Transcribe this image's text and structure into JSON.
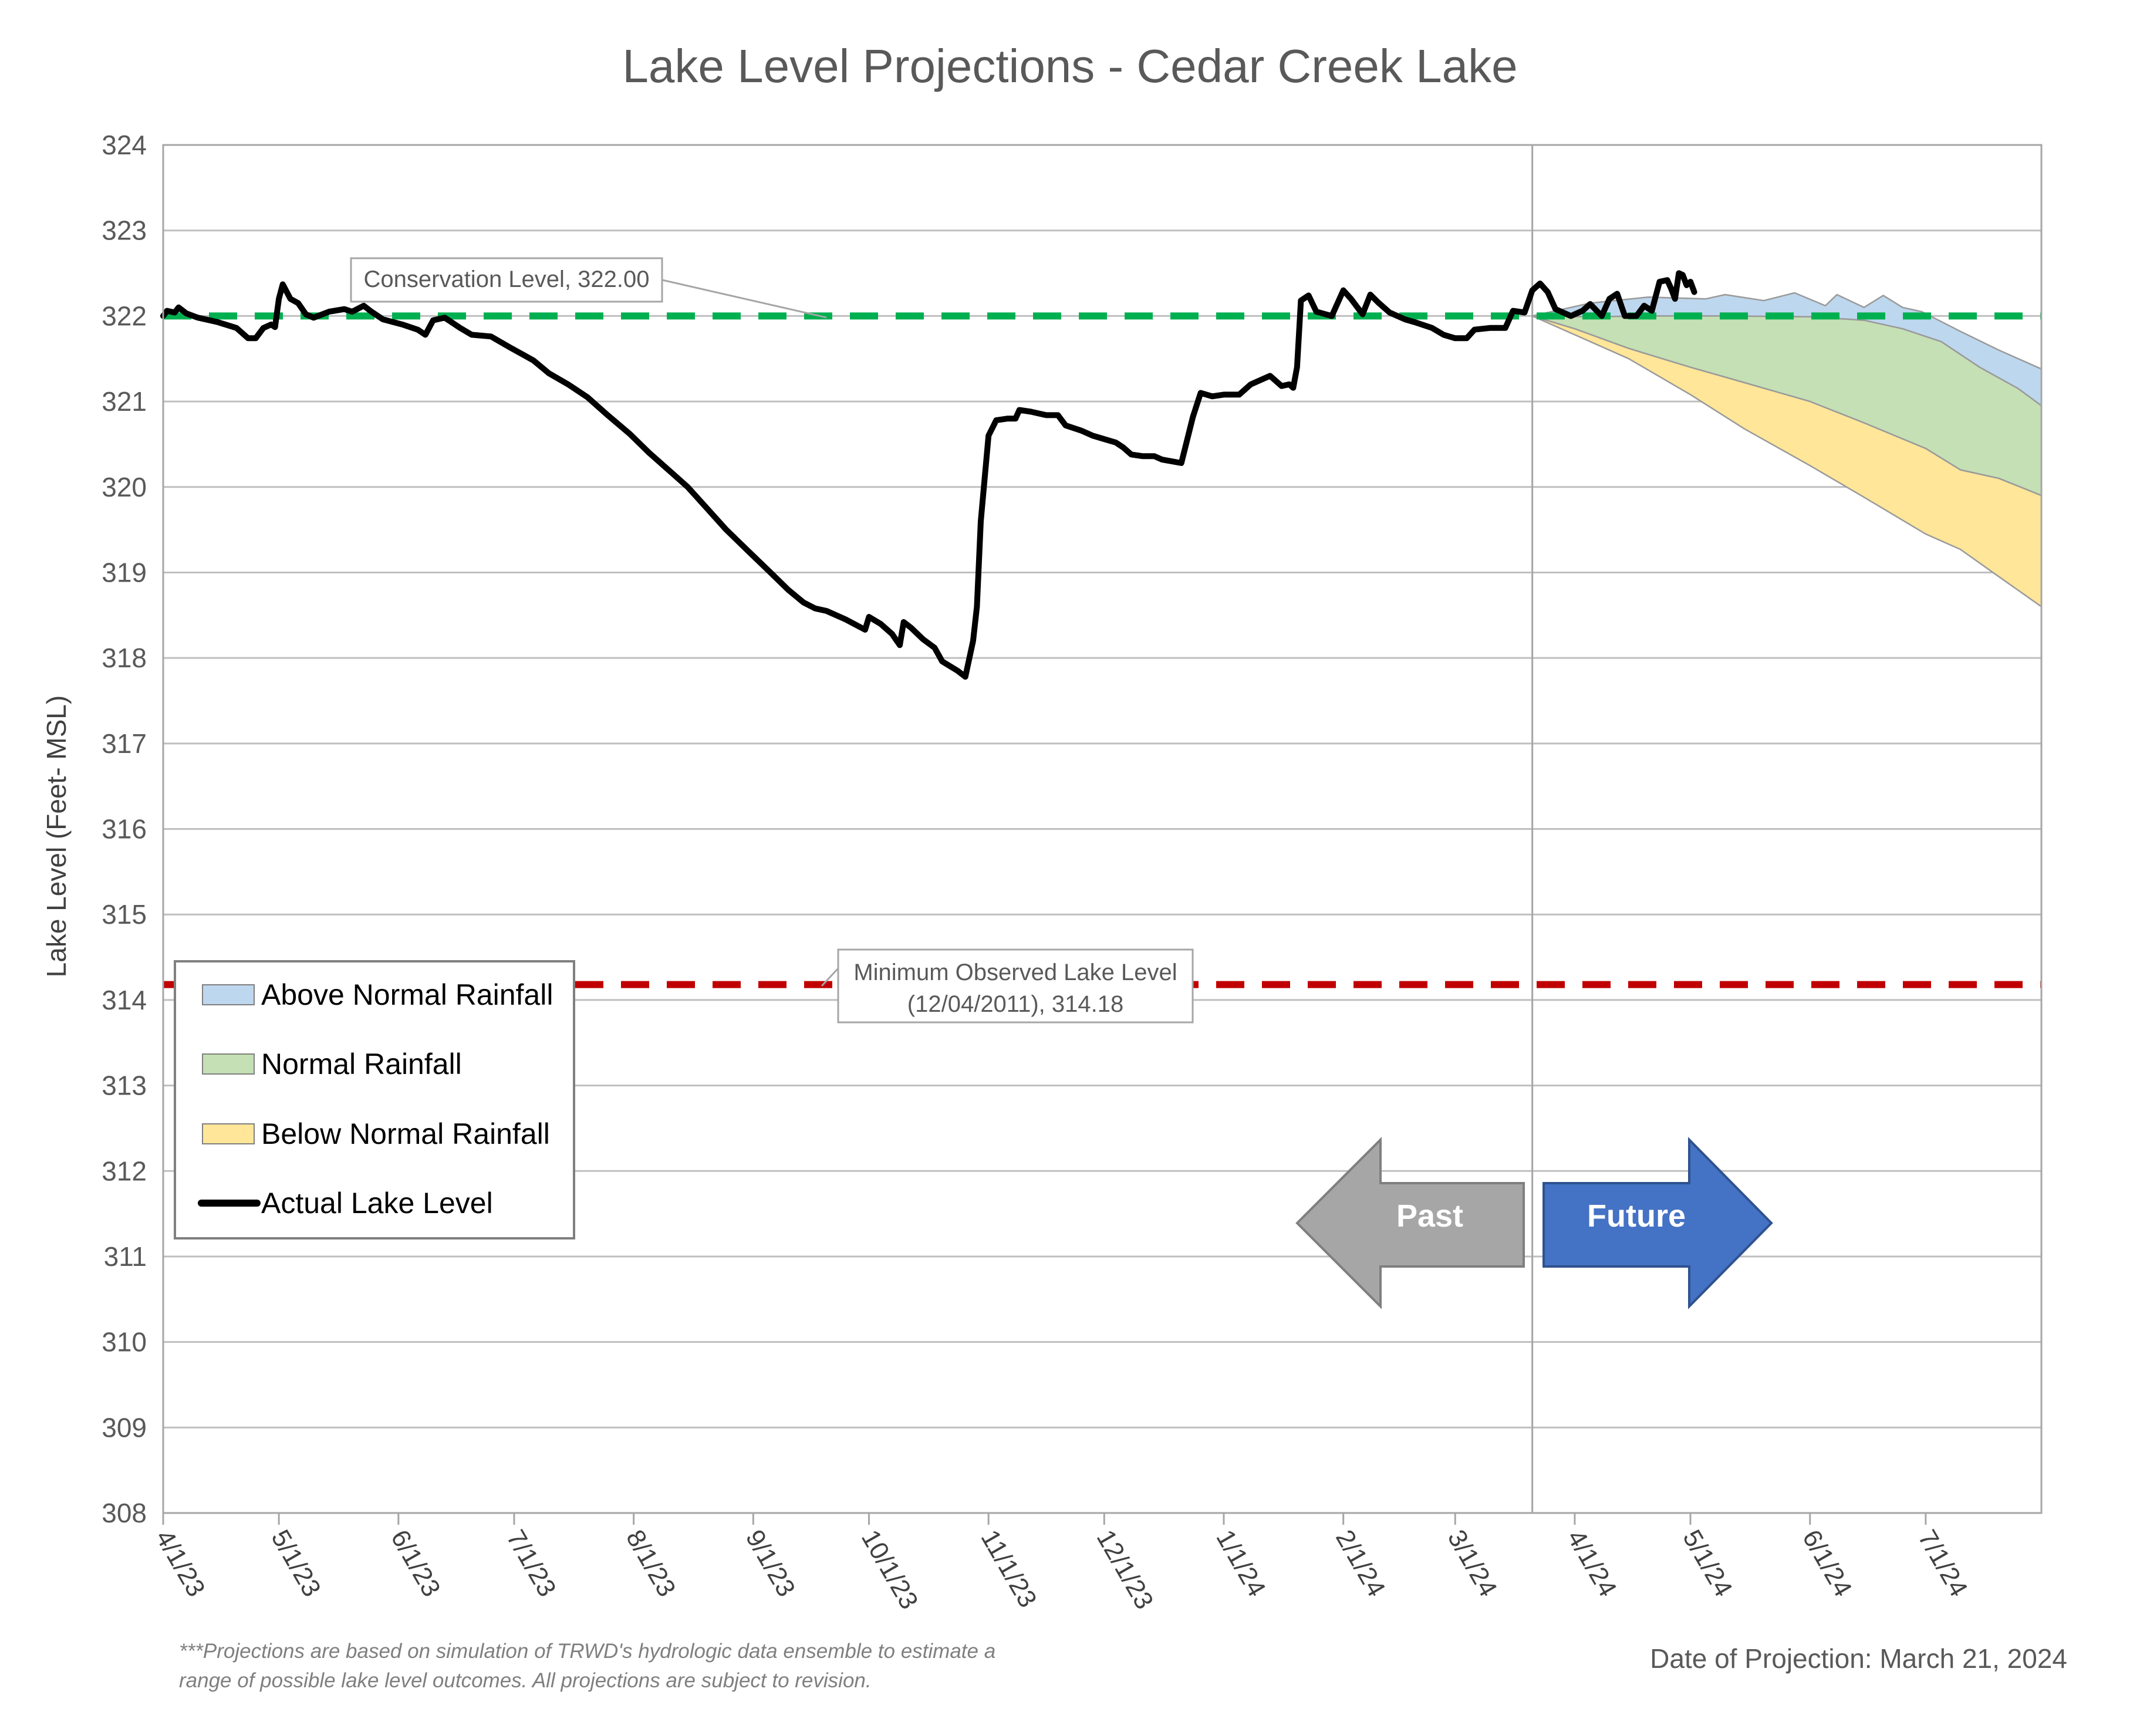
{
  "chart_data": {
    "type": "area",
    "title": "Lake Level Projections - Cedar Creek Lake",
    "xlabel": "",
    "ylabel": "Lake Level (Feet- MSL)",
    "ylim": [
      308,
      324
    ],
    "yticks": [
      308,
      309,
      310,
      311,
      312,
      313,
      314,
      315,
      316,
      317,
      318,
      319,
      320,
      321,
      322,
      323,
      324
    ],
    "xlim": [
      "2023-04-01",
      "2024-07-31"
    ],
    "xticks": [
      {
        "date": "2023-04-01",
        "label": "4/1/23"
      },
      {
        "date": "2023-05-01",
        "label": "5/1/23"
      },
      {
        "date": "2023-06-01",
        "label": "6/1/23"
      },
      {
        "date": "2023-07-01",
        "label": "7/1/23"
      },
      {
        "date": "2023-08-01",
        "label": "8/1/23"
      },
      {
        "date": "2023-09-01",
        "label": "9/1/23"
      },
      {
        "date": "2023-10-01",
        "label": "10/1/23"
      },
      {
        "date": "2023-11-01",
        "label": "11/1/23"
      },
      {
        "date": "2023-12-01",
        "label": "12/1/23"
      },
      {
        "date": "2024-01-01",
        "label": "1/1/24"
      },
      {
        "date": "2024-02-01",
        "label": "2/1/24"
      },
      {
        "date": "2024-03-01",
        "label": "3/1/24"
      },
      {
        "date": "2024-04-01",
        "label": "4/1/24"
      },
      {
        "date": "2024-05-01",
        "label": "5/1/24"
      },
      {
        "date": "2024-06-01",
        "label": "6/1/24"
      },
      {
        "date": "2024-07-01",
        "label": "7/1/24"
      }
    ],
    "grid": true,
    "projection_date": "2024-03-21",
    "reference_lines": [
      {
        "name": "Conservation Level",
        "value": 322.0,
        "color": "#00b050",
        "style": "dashed",
        "callout": "Conservation Level, 322.00"
      },
      {
        "name": "Minimum Observed Lake Level",
        "value": 314.18,
        "color": "#c00000",
        "style": "dashed",
        "callout_line1": "Minimum Observed Lake Level",
        "callout_line2": "(12/04/2011), 314.18"
      }
    ],
    "actual_lake_level": {
      "name": "Actual Lake Level",
      "color": "#000000",
      "points": [
        [
          "2023-04-01",
          322.0
        ],
        [
          "2023-04-02",
          322.06
        ],
        [
          "2023-04-04",
          322.04
        ],
        [
          "2023-04-05",
          322.1
        ],
        [
          "2023-04-07",
          322.03
        ],
        [
          "2023-04-10",
          321.98
        ],
        [
          "2023-04-15",
          321.93
        ],
        [
          "2023-04-20",
          321.86
        ],
        [
          "2023-04-23",
          321.74
        ],
        [
          "2023-04-25",
          321.74
        ],
        [
          "2023-04-27",
          321.86
        ],
        [
          "2023-04-29",
          321.9
        ],
        [
          "2023-04-30",
          321.87
        ],
        [
          "2023-05-01",
          322.2
        ],
        [
          "2023-05-02",
          322.37
        ],
        [
          "2023-05-04",
          322.2
        ],
        [
          "2023-05-06",
          322.15
        ],
        [
          "2023-05-08",
          322.02
        ],
        [
          "2023-05-10",
          321.98
        ],
        [
          "2023-05-14",
          322.05
        ],
        [
          "2023-05-18",
          322.08
        ],
        [
          "2023-05-20",
          322.05
        ],
        [
          "2023-05-23",
          322.12
        ],
        [
          "2023-05-25",
          322.05
        ],
        [
          "2023-05-28",
          321.96
        ],
        [
          "2023-06-02",
          321.9
        ],
        [
          "2023-06-06",
          321.84
        ],
        [
          "2023-06-08",
          321.78
        ],
        [
          "2023-06-10",
          321.95
        ],
        [
          "2023-06-13",
          321.98
        ],
        [
          "2023-06-17",
          321.86
        ],
        [
          "2023-06-20",
          321.78
        ],
        [
          "2023-06-25",
          321.76
        ],
        [
          "2023-06-30",
          321.63
        ],
        [
          "2023-07-06",
          321.48
        ],
        [
          "2023-07-10",
          321.33
        ],
        [
          "2023-07-15",
          321.2
        ],
        [
          "2023-07-20",
          321.05
        ],
        [
          "2023-07-25",
          320.85
        ],
        [
          "2023-07-31",
          320.62
        ],
        [
          "2023-08-05",
          320.4
        ],
        [
          "2023-08-10",
          320.2
        ],
        [
          "2023-08-15",
          320.0
        ],
        [
          "2023-08-20",
          319.75
        ],
        [
          "2023-08-25",
          319.5
        ],
        [
          "2023-08-30",
          319.28
        ],
        [
          "2023-09-05",
          319.02
        ],
        [
          "2023-09-10",
          318.8
        ],
        [
          "2023-09-14",
          318.65
        ],
        [
          "2023-09-17",
          318.58
        ],
        [
          "2023-09-20",
          318.55
        ],
        [
          "2023-09-25",
          318.45
        ],
        [
          "2023-09-30",
          318.33
        ],
        [
          "2023-10-01",
          318.48
        ],
        [
          "2023-10-04",
          318.4
        ],
        [
          "2023-10-07",
          318.28
        ],
        [
          "2023-10-09",
          318.15
        ],
        [
          "2023-10-10",
          318.42
        ],
        [
          "2023-10-12",
          318.35
        ],
        [
          "2023-10-15",
          318.22
        ],
        [
          "2023-10-18",
          318.12
        ],
        [
          "2023-10-20",
          317.96
        ],
        [
          "2023-10-24",
          317.85
        ],
        [
          "2023-10-26",
          317.78
        ],
        [
          "2023-10-28",
          318.2
        ],
        [
          "2023-10-29",
          318.6
        ],
        [
          "2023-10-30",
          319.6
        ],
        [
          "2023-11-01",
          320.6
        ],
        [
          "2023-11-03",
          320.78
        ],
        [
          "2023-11-06",
          320.8
        ],
        [
          "2023-11-08",
          320.8
        ],
        [
          "2023-11-09",
          320.9
        ],
        [
          "2023-11-12",
          320.88
        ],
        [
          "2023-11-16",
          320.84
        ],
        [
          "2023-11-19",
          320.84
        ],
        [
          "2023-11-21",
          320.72
        ],
        [
          "2023-11-25",
          320.66
        ],
        [
          "2023-11-28",
          320.6
        ],
        [
          "2023-12-01",
          320.56
        ],
        [
          "2023-12-04",
          320.52
        ],
        [
          "2023-12-06",
          320.46
        ],
        [
          "2023-12-08",
          320.38
        ],
        [
          "2023-12-11",
          320.36
        ],
        [
          "2023-12-14",
          320.36
        ],
        [
          "2023-12-16",
          320.32
        ],
        [
          "2023-12-21",
          320.28
        ],
        [
          "2023-12-24",
          320.82
        ],
        [
          "2023-12-26",
          321.1
        ],
        [
          "2023-12-29",
          321.06
        ],
        [
          "2024-01-01",
          321.08
        ],
        [
          "2024-01-05",
          321.08
        ],
        [
          "2024-01-08",
          321.2
        ],
        [
          "2024-01-11",
          321.26
        ],
        [
          "2024-01-13",
          321.3
        ],
        [
          "2024-01-16",
          321.18
        ],
        [
          "2024-01-18",
          321.2
        ],
        [
          "2024-01-19",
          321.16
        ],
        [
          "2024-01-20",
          321.4
        ],
        [
          "2024-01-21",
          322.18
        ],
        [
          "2024-01-23",
          322.24
        ],
        [
          "2024-01-25",
          322.05
        ],
        [
          "2024-01-29",
          322.0
        ],
        [
          "2024-02-01",
          322.3
        ],
        [
          "2024-02-03",
          322.2
        ],
        [
          "2024-02-06",
          322.02
        ],
        [
          "2024-02-08",
          322.25
        ],
        [
          "2024-02-10",
          322.16
        ],
        [
          "2024-02-13",
          322.04
        ],
        [
          "2024-02-17",
          321.96
        ],
        [
          "2024-02-20",
          321.92
        ],
        [
          "2024-02-24",
          321.86
        ],
        [
          "2024-02-27",
          321.78
        ],
        [
          "2024-03-01",
          321.74
        ],
        [
          "2024-03-04",
          321.74
        ],
        [
          "2024-03-06",
          321.84
        ],
        [
          "2024-03-10",
          321.86
        ],
        [
          "2024-03-14",
          321.86
        ],
        [
          "2024-03-16",
          322.06
        ],
        [
          "2024-03-19",
          322.04
        ],
        [
          "2024-03-21",
          322.3
        ],
        [
          "2024-03-23",
          322.38
        ],
        [
          "2024-03-25",
          322.28
        ],
        [
          "2024-03-27",
          322.08
        ],
        [
          "2024-03-31",
          322.0
        ],
        [
          "2024-04-03",
          322.06
        ],
        [
          "2024-04-05",
          322.14
        ],
        [
          "2024-04-08",
          322.0
        ],
        [
          "2024-04-10",
          322.2
        ],
        [
          "2024-04-12",
          322.26
        ],
        [
          "2024-04-14",
          322.0
        ],
        [
          "2024-04-17",
          322.0
        ],
        [
          "2024-04-19",
          322.12
        ],
        [
          "2024-04-21",
          322.06
        ],
        [
          "2024-04-23",
          322.4
        ],
        [
          "2024-04-25",
          322.42
        ],
        [
          "2024-04-26",
          322.32
        ],
        [
          "2024-04-27",
          322.2
        ],
        [
          "2024-04-28",
          322.5
        ],
        [
          "2024-04-29",
          322.48
        ],
        [
          "2024-04-30",
          322.36
        ],
        [
          "2024-05-01",
          322.4
        ],
        [
          "2024-05-02",
          322.28
        ]
      ]
    },
    "projection_series": [
      {
        "name": "Above Normal Rainfall",
        "color": "#bdd7ee",
        "upper": [
          [
            "2024-03-21",
            322.0
          ],
          [
            "2024-04-05",
            322.15
          ],
          [
            "2024-04-20",
            322.22
          ],
          [
            "2024-05-05",
            322.2
          ],
          [
            "2024-05-10",
            322.25
          ],
          [
            "2024-05-20",
            322.18
          ],
          [
            "2024-05-28",
            322.27
          ],
          [
            "2024-06-05",
            322.12
          ],
          [
            "2024-06-08",
            322.25
          ],
          [
            "2024-06-15",
            322.1
          ],
          [
            "2024-06-20",
            322.24
          ],
          [
            "2024-06-25",
            322.1
          ],
          [
            "2024-06-30",
            322.05
          ],
          [
            "2024-07-10",
            321.82
          ],
          [
            "2024-07-20",
            321.6
          ],
          [
            "2024-07-31",
            321.38
          ]
        ],
        "lower": [
          [
            "2024-03-21",
            322.0
          ],
          [
            "2024-04-05",
            321.99
          ],
          [
            "2024-04-20",
            322.0
          ],
          [
            "2024-05-10",
            322.0
          ],
          [
            "2024-06-01",
            321.99
          ],
          [
            "2024-06-15",
            321.95
          ],
          [
            "2024-06-25",
            321.85
          ],
          [
            "2024-07-05",
            321.7
          ],
          [
            "2024-07-15",
            321.4
          ],
          [
            "2024-07-25",
            321.15
          ],
          [
            "2024-07-31",
            320.95
          ]
        ]
      },
      {
        "name": "Normal Rainfall",
        "color": "#c5e0b4",
        "upper": [
          [
            "2024-03-21",
            322.0
          ],
          [
            "2024-04-05",
            321.99
          ],
          [
            "2024-04-20",
            322.0
          ],
          [
            "2024-05-10",
            322.0
          ],
          [
            "2024-06-01",
            321.99
          ],
          [
            "2024-06-15",
            321.95
          ],
          [
            "2024-06-25",
            321.85
          ],
          [
            "2024-07-05",
            321.7
          ],
          [
            "2024-07-15",
            321.4
          ],
          [
            "2024-07-25",
            321.15
          ],
          [
            "2024-07-31",
            320.95
          ]
        ],
        "lower": [
          [
            "2024-03-21",
            322.0
          ],
          [
            "2024-04-01",
            321.85
          ],
          [
            "2024-04-15",
            321.62
          ],
          [
            "2024-05-01",
            321.4
          ],
          [
            "2024-05-15",
            321.22
          ],
          [
            "2024-06-01",
            321.0
          ],
          [
            "2024-06-15",
            320.75
          ],
          [
            "2024-07-01",
            320.45
          ],
          [
            "2024-07-10",
            320.2
          ],
          [
            "2024-07-20",
            320.1
          ],
          [
            "2024-07-31",
            319.9
          ]
        ]
      },
      {
        "name": "Below Normal Rainfall",
        "color": "#ffe699",
        "upper": [
          [
            "2024-03-21",
            322.0
          ],
          [
            "2024-04-01",
            321.85
          ],
          [
            "2024-04-15",
            321.62
          ],
          [
            "2024-05-01",
            321.4
          ],
          [
            "2024-05-15",
            321.22
          ],
          [
            "2024-06-01",
            321.0
          ],
          [
            "2024-06-15",
            320.75
          ],
          [
            "2024-07-01",
            320.45
          ],
          [
            "2024-07-10",
            320.2
          ],
          [
            "2024-07-20",
            320.1
          ],
          [
            "2024-07-31",
            319.9
          ]
        ],
        "lower": [
          [
            "2024-03-21",
            322.0
          ],
          [
            "2024-04-01",
            321.78
          ],
          [
            "2024-04-15",
            321.5
          ],
          [
            "2024-05-01",
            321.08
          ],
          [
            "2024-05-15",
            320.68
          ],
          [
            "2024-06-01",
            320.25
          ],
          [
            "2024-06-15",
            319.88
          ],
          [
            "2024-07-01",
            319.45
          ],
          [
            "2024-07-10",
            319.27
          ],
          [
            "2024-07-20",
            318.95
          ],
          [
            "2024-07-31",
            318.6
          ]
        ]
      }
    ],
    "legend": {
      "placement": "lower-left",
      "entries": [
        {
          "label": "Above Normal Rainfall",
          "color": "#bdd7ee",
          "kind": "area"
        },
        {
          "label": "Normal Rainfall",
          "color": "#c5e0b4",
          "kind": "area"
        },
        {
          "label": "Below Normal Rainfall",
          "color": "#ffe699",
          "kind": "area"
        },
        {
          "label": "Actual Lake Level",
          "color": "#000000",
          "kind": "line"
        }
      ]
    },
    "arrows": {
      "past": {
        "label": "Past",
        "color": "#a6a6a6"
      },
      "future": {
        "label": "Future",
        "color": "#4472c4"
      }
    },
    "footnote_line1": "***Projections are based on simulation of TRWD's hydrologic data ensemble to estimate a",
    "footnote_line2": "range of possible lake level outcomes.  All projections are subject to revision.",
    "date_of_projection": "Date of Projection: March 21, 2024"
  }
}
